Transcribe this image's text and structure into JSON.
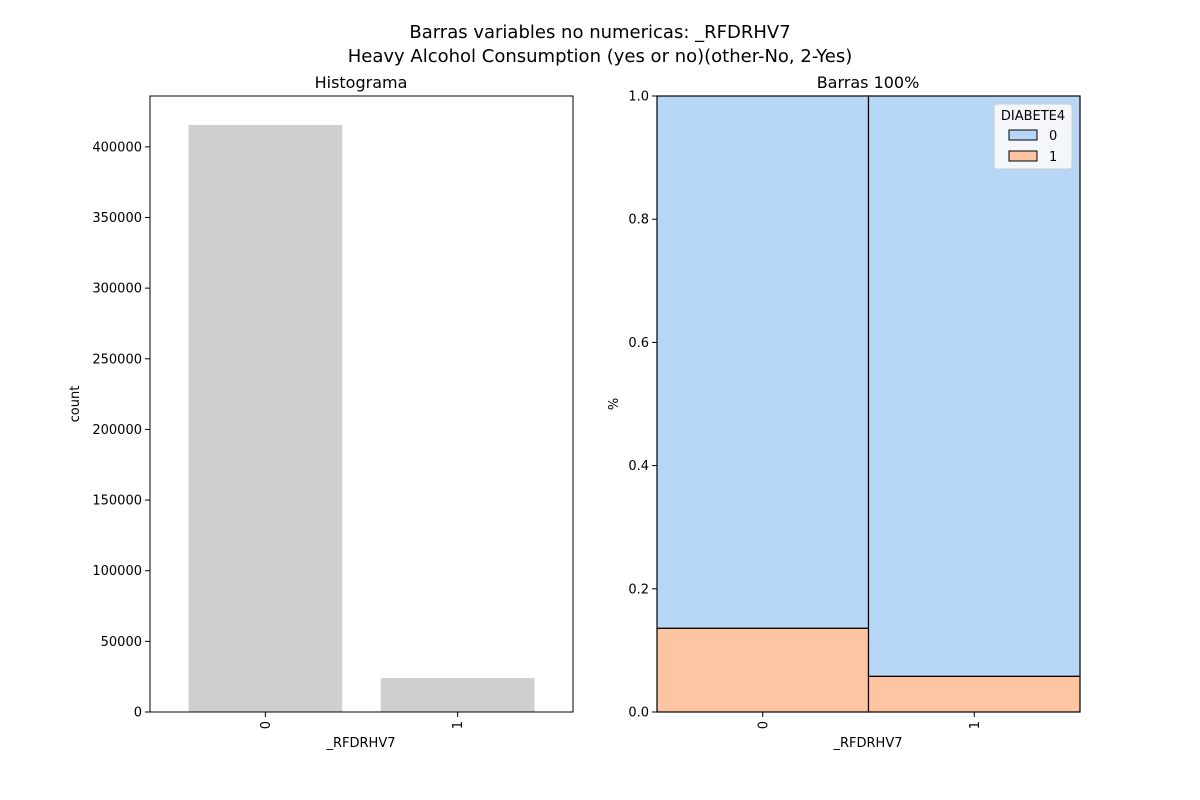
{
  "figure": {
    "title_line1": "Barras variables no numericas: _RFDRHV7",
    "title_line2": "Heavy Alcohol Consumption (yes or no)(other-No, 2-Yes)"
  },
  "chart_data": [
    {
      "type": "bar",
      "title": "Histograma",
      "xlabel": "_RFDRHV7",
      "ylabel": "count",
      "categories": [
        "0",
        "1"
      ],
      "values": [
        415500,
        24000
      ],
      "ylim": [
        0,
        436000
      ],
      "yticks": [
        0,
        50000,
        100000,
        150000,
        200000,
        250000,
        300000,
        350000,
        400000
      ],
      "ytick_labels": [
        "0",
        "50000",
        "100000",
        "150000",
        "200000",
        "250000",
        "300000",
        "350000",
        "400000"
      ],
      "bar_color": "#cfcfcf",
      "grid": false
    },
    {
      "type": "bar",
      "stacked": true,
      "normalized": true,
      "title": "Barras 100%",
      "xlabel": "_RFDRHV7",
      "ylabel": "%",
      "categories": [
        "0",
        "1"
      ],
      "series": [
        {
          "name": "1",
          "values": [
            0.136,
            0.058
          ],
          "color": "#fdc5a2"
        },
        {
          "name": "0",
          "values": [
            0.864,
            0.942
          ],
          "color": "#b8d6f5"
        }
      ],
      "ylim": [
        0,
        1
      ],
      "yticks": [
        0,
        0.2,
        0.4,
        0.6,
        0.8,
        1.0
      ],
      "ytick_labels": [
        "0.0",
        "0.2",
        "0.4",
        "0.6",
        "0.8",
        "1.0"
      ],
      "legend": {
        "title": "DIABETE4",
        "placement": "top-right",
        "entries": [
          {
            "label": "0",
            "color": "#b8d6f5"
          },
          {
            "label": "1",
            "color": "#fdc5a2"
          }
        ]
      },
      "grid": false
    }
  ]
}
